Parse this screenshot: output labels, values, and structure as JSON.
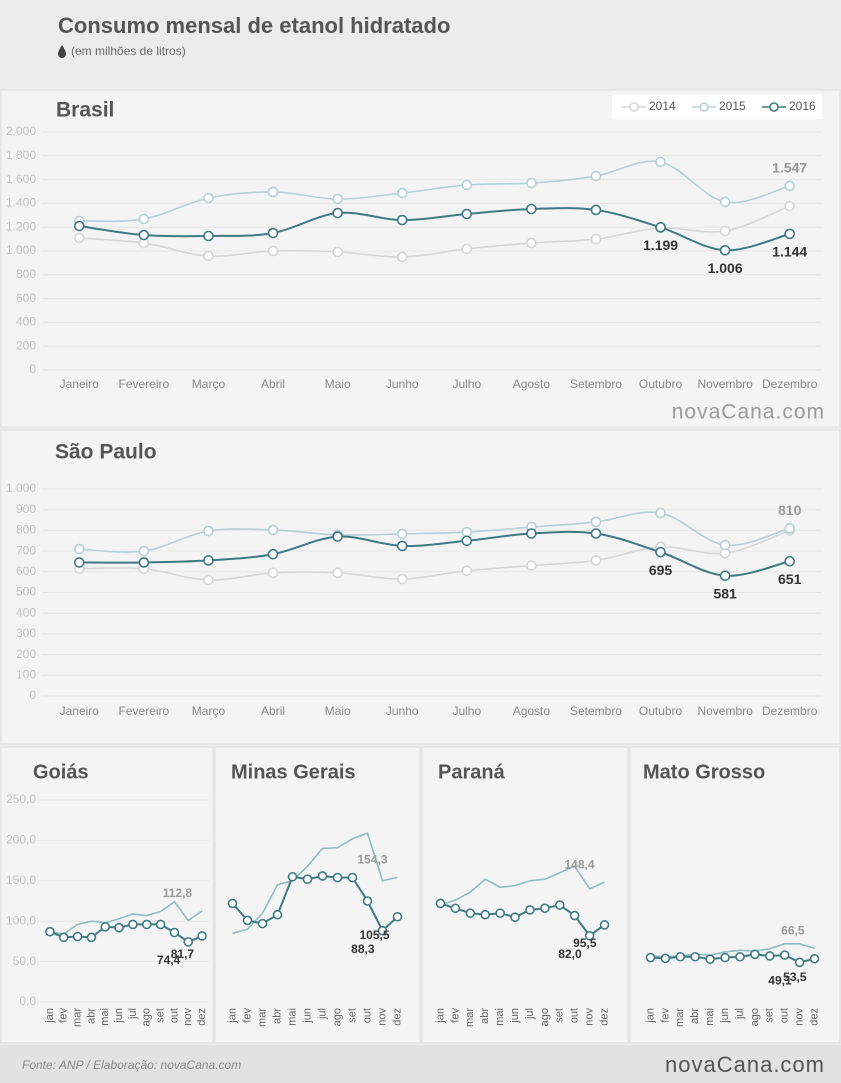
{
  "header": {
    "title": "Consumo mensal de etanol hidratado",
    "subtitle": "(em milhões de litros)"
  },
  "watermark": "novaCana.com",
  "footer": {
    "source": "Fonte: ANP / Elaboração: novaCana.com",
    "brand": "novaCana.com"
  },
  "chart_data": [
    {
      "type": "line",
      "title": "Brasil",
      "smooth": true,
      "grid": true,
      "legend": "top-right",
      "categories": [
        "Janeiro",
        "Fevereiro",
        "Março",
        "Abril",
        "Maio",
        "Junho",
        "Julho",
        "Agosto",
        "Setembro",
        "Outubro",
        "Novembro",
        "Dezembro"
      ],
      "ylim": [
        0,
        2000
      ],
      "yticks": [
        0,
        200,
        400,
        600,
        800,
        {
          "value": 1000,
          "label": "1.000"
        },
        {
          "value": 1200,
          "label": "1.200"
        },
        {
          "value": 1400,
          "label": "1.400"
        },
        {
          "value": 1600,
          "label": "1.600"
        },
        {
          "value": 1800,
          "label": "1.800"
        },
        {
          "value": 2000,
          "label": "2.000"
        }
      ],
      "series": [
        {
          "name": "2014",
          "color": "#d6d6d6",
          "markers": true,
          "values": [
            1109,
            1067,
            958,
            1000,
            992,
            950,
            1017,
            1067,
            1100,
            1193,
            1168,
            1378
          ]
        },
        {
          "name": "2015",
          "color": "#b5d0d4",
          "markers": true,
          "values": [
            1252,
            1269,
            1445,
            1496,
            1437,
            1487,
            1555,
            1571,
            1630,
            1748,
            1412,
            1547
          ],
          "value_labels": [
            null,
            null,
            null,
            null,
            null,
            null,
            null,
            null,
            null,
            null,
            null,
            "1.547"
          ]
        },
        {
          "name": "2016",
          "color": "#3e7a84",
          "markers": true,
          "values": [
            1210,
            1134,
            1126,
            1151,
            1319,
            1260,
            1311,
            1353,
            1345,
            1199,
            1006,
            1144
          ],
          "value_labels": [
            null,
            null,
            null,
            null,
            null,
            null,
            null,
            null,
            null,
            "1.199",
            "1.006",
            "1.144"
          ]
        }
      ]
    },
    {
      "type": "line",
      "title": "São Paulo",
      "smooth": true,
      "grid": true,
      "categories": [
        "Janeiro",
        "Fevereiro",
        "Março",
        "Abril",
        "Maio",
        "Junho",
        "Julho",
        "Agosto",
        "Setembro",
        "Outubro",
        "Novembro",
        "Dezembro"
      ],
      "ylim": [
        0,
        1000
      ],
      "yticks": [
        0,
        100,
        200,
        300,
        400,
        500,
        600,
        700,
        800,
        900,
        {
          "value": 1000,
          "label": "1.000"
        }
      ],
      "series": [
        {
          "name": "2014",
          "color": "#d6d6d6",
          "markers": true,
          "values": [
            615,
            615,
            560,
            595,
            595,
            565,
            605,
            630,
            655,
            720,
            690,
            800
          ]
        },
        {
          "name": "2015",
          "color": "#b5d0d4",
          "markers": true,
          "values": [
            710,
            700,
            797,
            802,
            778,
            783,
            792,
            816,
            841,
            884,
            729,
            810
          ],
          "value_labels": [
            null,
            null,
            null,
            null,
            null,
            null,
            null,
            null,
            null,
            null,
            null,
            "810"
          ]
        },
        {
          "name": "2016",
          "color": "#3e7a84",
          "markers": true,
          "values": [
            645,
            645,
            655,
            685,
            770,
            725,
            750,
            785,
            785,
            695,
            581,
            651
          ],
          "value_labels": [
            null,
            null,
            null,
            null,
            null,
            null,
            null,
            null,
            null,
            "695",
            "581",
            "651"
          ]
        }
      ]
    },
    {
      "type": "line",
      "title": "Goiás",
      "smooth": false,
      "grid": true,
      "categories": [
        "jan",
        "fev",
        "mar",
        "abr",
        "mai",
        "jun",
        "jul",
        "ago",
        "set",
        "out",
        "nov",
        "dez"
      ],
      "ylim": [
        0,
        250
      ],
      "yticks": [
        {
          "value": 0,
          "label": "0,0"
        },
        {
          "value": 50,
          "label": "50,0"
        },
        {
          "value": 100,
          "label": "100,0"
        },
        {
          "value": 150,
          "label": "150,0"
        },
        {
          "value": 200,
          "label": "200,0"
        },
        {
          "value": 250,
          "label": "250,0"
        }
      ],
      "series": [
        {
          "color": "#8fbcc2",
          "markers": false,
          "values": [
            87,
            84,
            96,
            100,
            98,
            103,
            109,
            107,
            112,
            124,
            101,
            112.8
          ],
          "value_labels": [
            null,
            null,
            null,
            null,
            null,
            null,
            null,
            null,
            null,
            null,
            null,
            "112,8"
          ]
        },
        {
          "color": "#3e7a84",
          "markers": true,
          "values": [
            87,
            80,
            81,
            80,
            93,
            92,
            96,
            96,
            96,
            86,
            74.4,
            81.7
          ],
          "value_labels": [
            null,
            null,
            null,
            null,
            null,
            null,
            null,
            null,
            null,
            null,
            "74,4",
            "81,7"
          ]
        }
      ]
    },
    {
      "type": "line",
      "title": "Minas Gerais",
      "smooth": false,
      "categories": [
        "jan",
        "fev",
        "mar",
        "abr",
        "mai",
        "jun",
        "jul",
        "ago",
        "set",
        "out",
        "nov",
        "dez"
      ],
      "ylim": [
        0,
        250
      ],
      "series": [
        {
          "color": "#8fbcc2",
          "markers": false,
          "values": [
            85,
            90,
            110,
            145,
            150,
            168,
            190,
            191,
            202,
            209,
            150,
            154.3
          ],
          "value_labels": [
            null,
            null,
            null,
            null,
            null,
            null,
            null,
            null,
            null,
            null,
            null,
            "154,3"
          ]
        },
        {
          "color": "#3e7a84",
          "markers": true,
          "values": [
            122,
            101,
            97,
            108,
            155,
            152,
            156,
            154,
            154,
            125,
            88.3,
            105.5
          ],
          "value_labels": [
            null,
            null,
            null,
            null,
            null,
            null,
            null,
            null,
            null,
            null,
            "88,3",
            "105,5"
          ]
        }
      ]
    },
    {
      "type": "line",
      "title": "Paraná",
      "smooth": false,
      "categories": [
        "jan",
        "fev",
        "mar",
        "abr",
        "mai",
        "jun",
        "jul",
        "ago",
        "set",
        "out",
        "nov",
        "dez"
      ],
      "ylim": [
        0,
        250
      ],
      "series": [
        {
          "color": "#8fbcc2",
          "markers": false,
          "values": [
            120,
            126,
            136,
            152,
            142,
            144,
            150,
            152,
            160,
            168,
            140,
            148.4
          ],
          "value_labels": [
            null,
            null,
            null,
            null,
            null,
            null,
            null,
            null,
            null,
            null,
            null,
            "148,4"
          ]
        },
        {
          "color": "#3e7a84",
          "markers": true,
          "values": [
            122,
            116,
            110,
            108,
            110,
            105,
            114,
            116,
            120,
            107,
            82.0,
            95.5
          ],
          "value_labels": [
            null,
            null,
            null,
            null,
            null,
            null,
            null,
            null,
            null,
            null,
            "82,0",
            "95,5"
          ]
        }
      ]
    },
    {
      "type": "line",
      "title": "Mato Grosso",
      "smooth": false,
      "categories": [
        "jan",
        "fev",
        "mar",
        "abr",
        "mai",
        "jun",
        "jul",
        "ago",
        "set",
        "out",
        "nov",
        "dez"
      ],
      "ylim": [
        0,
        250
      ],
      "series": [
        {
          "color": "#8fbcc2",
          "markers": false,
          "values": [
            57,
            56,
            57,
            59,
            58,
            62,
            64,
            63,
            66,
            72,
            72,
            66.5
          ],
          "value_labels": [
            null,
            null,
            null,
            null,
            null,
            null,
            null,
            null,
            null,
            null,
            null,
            "66,5"
          ]
        },
        {
          "color": "#3e7a84",
          "markers": true,
          "values": [
            55,
            54,
            56,
            56,
            53,
            55,
            56,
            59,
            57,
            58,
            49.1,
            53.5
          ],
          "value_labels": [
            null,
            null,
            null,
            null,
            null,
            null,
            null,
            null,
            null,
            null,
            "49,1",
            "53,5"
          ]
        }
      ]
    }
  ]
}
